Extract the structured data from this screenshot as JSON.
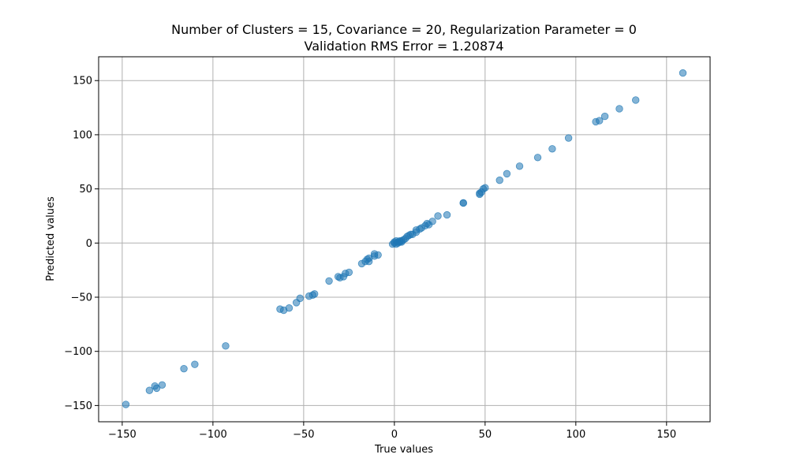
{
  "chart_data": {
    "type": "scatter",
    "title": "Number of Clusters = 15, Covariance = 20, Regularization Parameter = 0",
    "subtitle": "Validation RMS Error = 1.20874",
    "xlabel": "True values",
    "ylabel": "Predicted values",
    "xlim": [
      -163,
      174
    ],
    "ylim": [
      -165,
      172
    ],
    "xticks": [
      -150,
      -100,
      -50,
      0,
      50,
      100,
      150
    ],
    "yticks": [
      -150,
      -100,
      -50,
      0,
      50,
      100,
      150
    ],
    "xtick_labels": [
      "−150",
      "−100",
      "−50",
      "0",
      "50",
      "100",
      "150"
    ],
    "ytick_labels": [
      "−150",
      "−100",
      "−50",
      "0",
      "50",
      "100",
      "150"
    ],
    "grid": true,
    "marker_color": "#1f77b4",
    "marker_alpha": 0.55,
    "points": [
      [
        -148,
        -149
      ],
      [
        -135,
        -136
      ],
      [
        -132,
        -132
      ],
      [
        -131,
        -134
      ],
      [
        -128,
        -131
      ],
      [
        -116,
        -116
      ],
      [
        -110,
        -112
      ],
      [
        -93,
        -95
      ],
      [
        -63,
        -61
      ],
      [
        -61,
        -62
      ],
      [
        -58,
        -60
      ],
      [
        -54,
        -55
      ],
      [
        -52,
        -51
      ],
      [
        -47,
        -49
      ],
      [
        -45,
        -48
      ],
      [
        -44,
        -47
      ],
      [
        -36,
        -35
      ],
      [
        -31,
        -31
      ],
      [
        -30,
        -32
      ],
      [
        -28,
        -31
      ],
      [
        -27,
        -28
      ],
      [
        -25,
        -27
      ],
      [
        -18,
        -19
      ],
      [
        -16,
        -17
      ],
      [
        -15,
        -15
      ],
      [
        -14,
        -14
      ],
      [
        -14,
        -17
      ],
      [
        -11,
        -10
      ],
      [
        -11,
        -12
      ],
      [
        -9,
        -11
      ],
      [
        -1,
        -1
      ],
      [
        0,
        0
      ],
      [
        0,
        1
      ],
      [
        1,
        2
      ],
      [
        1,
        -1
      ],
      [
        2,
        1
      ],
      [
        2,
        0
      ],
      [
        3,
        2
      ],
      [
        3,
        1
      ],
      [
        4,
        1
      ],
      [
        4,
        2
      ],
      [
        5,
        3
      ],
      [
        6,
        4
      ],
      [
        7,
        6
      ],
      [
        8,
        7
      ],
      [
        9,
        8
      ],
      [
        10,
        8
      ],
      [
        12,
        10
      ],
      [
        12,
        12
      ],
      [
        14,
        13
      ],
      [
        15,
        14
      ],
      [
        17,
        16
      ],
      [
        18,
        18
      ],
      [
        19,
        17
      ],
      [
        21,
        20
      ],
      [
        24,
        25
      ],
      [
        29,
        26
      ],
      [
        38,
        37
      ],
      [
        38,
        37
      ],
      [
        47,
        45
      ],
      [
        47,
        46
      ],
      [
        48,
        47
      ],
      [
        49,
        50
      ],
      [
        50,
        51
      ],
      [
        58,
        58
      ],
      [
        62,
        64
      ],
      [
        69,
        71
      ],
      [
        79,
        79
      ],
      [
        87,
        87
      ],
      [
        96,
        97
      ],
      [
        111,
        112
      ],
      [
        113,
        113
      ],
      [
        116,
        117
      ],
      [
        124,
        124
      ],
      [
        133,
        132
      ],
      [
        159,
        157
      ]
    ]
  }
}
